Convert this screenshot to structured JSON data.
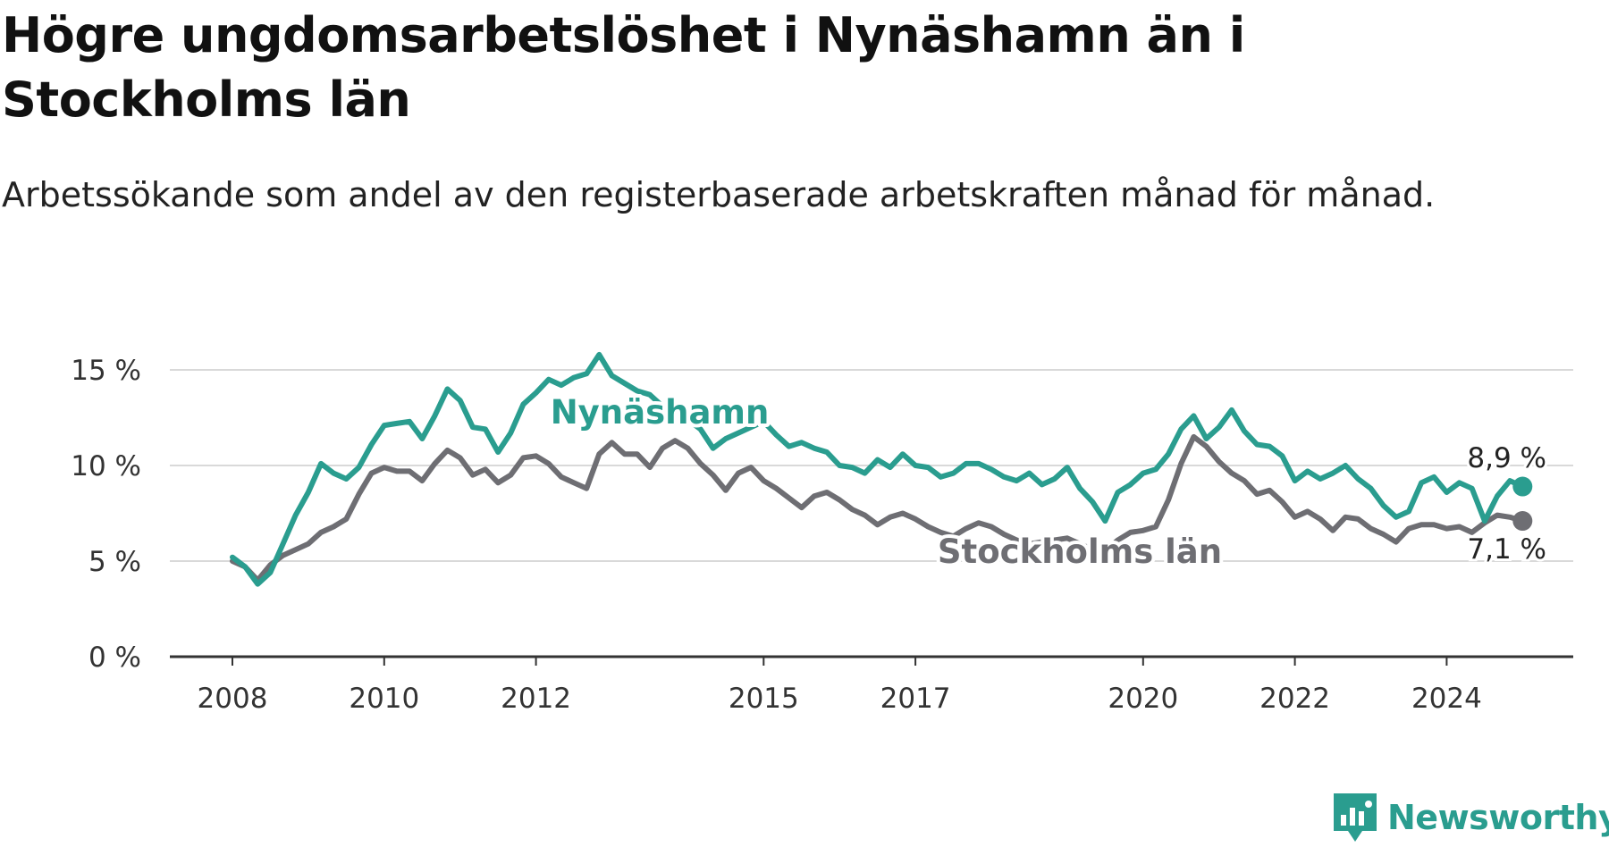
{
  "title": "Högre ungdomsarbetslöshet i Nynäshamn än i Stockholms län",
  "subtitle": "Arbetssökande som andel av den registerbaserade arbetskraften månad för månad.",
  "brand": {
    "name": "Newsworthy",
    "icon": "newsworthy-logo-icon",
    "color": "#2a9d8f"
  },
  "chart_data": {
    "type": "line",
    "title": "Högre ungdomsarbetslöshet i Nynäshamn än i Stockholms län",
    "subtitle": "Arbetssökande som andel av den registerbaserade arbetskraften månad för månad.",
    "xlabel": "",
    "ylabel": "",
    "x_ticks": [
      "2008",
      "2010",
      "2012",
      "2015",
      "2017",
      "2020",
      "2022",
      "2024"
    ],
    "y_ticks": [
      "0 %",
      "5 %",
      "10 %",
      "15 %"
    ],
    "ylim": [
      0,
      16
    ],
    "grid": "horizontal",
    "legend": "inline labels",
    "series": [
      {
        "name": "Nynäshamn",
        "color": "#2a9d8f",
        "end_label": "8,9 %",
        "points": [
          [
            "2008-01",
            5.2
          ],
          [
            "2008-03",
            4.7
          ],
          [
            "2008-05",
            3.8
          ],
          [
            "2008-07",
            4.4
          ],
          [
            "2008-09",
            5.9
          ],
          [
            "2008-11",
            7.4
          ],
          [
            "2009-01",
            8.6
          ],
          [
            "2009-03",
            10.1
          ],
          [
            "2009-05",
            9.6
          ],
          [
            "2009-07",
            9.3
          ],
          [
            "2009-09",
            9.9
          ],
          [
            "2009-11",
            11.1
          ],
          [
            "2010-01",
            12.1
          ],
          [
            "2010-03",
            12.2
          ],
          [
            "2010-05",
            12.3
          ],
          [
            "2010-07",
            11.4
          ],
          [
            "2010-09",
            12.6
          ],
          [
            "2010-11",
            14.0
          ],
          [
            "2011-01",
            13.4
          ],
          [
            "2011-03",
            12.0
          ],
          [
            "2011-05",
            11.9
          ],
          [
            "2011-07",
            10.7
          ],
          [
            "2011-09",
            11.7
          ],
          [
            "2011-11",
            13.2
          ],
          [
            "2012-01",
            13.8
          ],
          [
            "2012-03",
            14.5
          ],
          [
            "2012-05",
            14.2
          ],
          [
            "2012-07",
            14.6
          ],
          [
            "2012-09",
            14.8
          ],
          [
            "2012-11",
            15.8
          ],
          [
            "2013-01",
            14.7
          ],
          [
            "2013-03",
            14.3
          ],
          [
            "2013-05",
            13.9
          ],
          [
            "2013-07",
            13.7
          ],
          [
            "2013-09",
            13.1
          ],
          [
            "2013-11",
            12.8
          ],
          [
            "2014-01",
            12.4
          ],
          [
            "2014-03",
            11.9
          ],
          [
            "2014-05",
            10.9
          ],
          [
            "2014-07",
            11.4
          ],
          [
            "2014-09",
            11.7
          ],
          [
            "2014-11",
            12.0
          ],
          [
            "2015-01",
            12.3
          ],
          [
            "2015-03",
            11.6
          ],
          [
            "2015-05",
            11.0
          ],
          [
            "2015-07",
            11.2
          ],
          [
            "2015-09",
            10.9
          ],
          [
            "2015-11",
            10.7
          ],
          [
            "2016-01",
            10.0
          ],
          [
            "2016-03",
            9.9
          ],
          [
            "2016-05",
            9.6
          ],
          [
            "2016-07",
            10.3
          ],
          [
            "2016-09",
            9.9
          ],
          [
            "2016-11",
            10.6
          ],
          [
            "2017-01",
            10.0
          ],
          [
            "2017-03",
            9.9
          ],
          [
            "2017-05",
            9.4
          ],
          [
            "2017-07",
            9.6
          ],
          [
            "2017-09",
            10.1
          ],
          [
            "2017-11",
            10.1
          ],
          [
            "2018-01",
            9.8
          ],
          [
            "2018-03",
            9.4
          ],
          [
            "2018-05",
            9.2
          ],
          [
            "2018-07",
            9.6
          ],
          [
            "2018-09",
            9.0
          ],
          [
            "2018-11",
            9.3
          ],
          [
            "2019-01",
            9.9
          ],
          [
            "2019-03",
            8.8
          ],
          [
            "2019-05",
            8.1
          ],
          [
            "2019-07",
            7.1
          ],
          [
            "2019-09",
            8.6
          ],
          [
            "2019-11",
            9.0
          ],
          [
            "2020-01",
            9.6
          ],
          [
            "2020-03",
            9.8
          ],
          [
            "2020-05",
            10.6
          ],
          [
            "2020-07",
            11.9
          ],
          [
            "2020-09",
            12.6
          ],
          [
            "2020-11",
            11.4
          ],
          [
            "2021-01",
            12.0
          ],
          [
            "2021-03",
            12.9
          ],
          [
            "2021-05",
            11.8
          ],
          [
            "2021-07",
            11.1
          ],
          [
            "2021-09",
            11.0
          ],
          [
            "2021-11",
            10.5
          ],
          [
            "2022-01",
            9.2
          ],
          [
            "2022-03",
            9.7
          ],
          [
            "2022-05",
            9.3
          ],
          [
            "2022-07",
            9.6
          ],
          [
            "2022-09",
            10.0
          ],
          [
            "2022-11",
            9.3
          ],
          [
            "2023-01",
            8.8
          ],
          [
            "2023-03",
            7.9
          ],
          [
            "2023-05",
            7.3
          ],
          [
            "2023-07",
            7.6
          ],
          [
            "2023-09",
            9.1
          ],
          [
            "2023-11",
            9.4
          ],
          [
            "2024-01",
            8.6
          ],
          [
            "2024-03",
            9.1
          ],
          [
            "2024-05",
            8.8
          ],
          [
            "2024-07",
            7.1
          ],
          [
            "2024-09",
            8.4
          ],
          [
            "2024-11",
            9.2
          ],
          [
            "2025-01",
            8.9
          ]
        ]
      },
      {
        "name": "Stockholms län",
        "color": "#6e6e73",
        "end_label": "7,1 %",
        "points": [
          [
            "2008-01",
            5.0
          ],
          [
            "2008-03",
            4.7
          ],
          [
            "2008-05",
            4.0
          ],
          [
            "2008-07",
            4.8
          ],
          [
            "2008-09",
            5.3
          ],
          [
            "2008-11",
            5.6
          ],
          [
            "2009-01",
            5.9
          ],
          [
            "2009-03",
            6.5
          ],
          [
            "2009-05",
            6.8
          ],
          [
            "2009-07",
            7.2
          ],
          [
            "2009-09",
            8.5
          ],
          [
            "2009-11",
            9.6
          ],
          [
            "2010-01",
            9.9
          ],
          [
            "2010-03",
            9.7
          ],
          [
            "2010-05",
            9.7
          ],
          [
            "2010-07",
            9.2
          ],
          [
            "2010-09",
            10.1
          ],
          [
            "2010-11",
            10.8
          ],
          [
            "2011-01",
            10.4
          ],
          [
            "2011-03",
            9.5
          ],
          [
            "2011-05",
            9.8
          ],
          [
            "2011-07",
            9.1
          ],
          [
            "2011-09",
            9.5
          ],
          [
            "2011-11",
            10.4
          ],
          [
            "2012-01",
            10.5
          ],
          [
            "2012-03",
            10.1
          ],
          [
            "2012-05",
            9.4
          ],
          [
            "2012-07",
            9.1
          ],
          [
            "2012-09",
            8.8
          ],
          [
            "2012-11",
            10.6
          ],
          [
            "2013-01",
            11.2
          ],
          [
            "2013-03",
            10.6
          ],
          [
            "2013-05",
            10.6
          ],
          [
            "2013-07",
            9.9
          ],
          [
            "2013-09",
            10.9
          ],
          [
            "2013-11",
            11.3
          ],
          [
            "2014-01",
            10.9
          ],
          [
            "2014-03",
            10.1
          ],
          [
            "2014-05",
            9.5
          ],
          [
            "2014-07",
            8.7
          ],
          [
            "2014-09",
            9.6
          ],
          [
            "2014-11",
            9.9
          ],
          [
            "2015-01",
            9.2
          ],
          [
            "2015-03",
            8.8
          ],
          [
            "2015-05",
            8.3
          ],
          [
            "2015-07",
            7.8
          ],
          [
            "2015-09",
            8.4
          ],
          [
            "2015-11",
            8.6
          ],
          [
            "2016-01",
            8.2
          ],
          [
            "2016-03",
            7.7
          ],
          [
            "2016-05",
            7.4
          ],
          [
            "2016-07",
            6.9
          ],
          [
            "2016-09",
            7.3
          ],
          [
            "2016-11",
            7.5
          ],
          [
            "2017-01",
            7.2
          ],
          [
            "2017-03",
            6.8
          ],
          [
            "2017-05",
            6.5
          ],
          [
            "2017-07",
            6.3
          ],
          [
            "2017-09",
            6.7
          ],
          [
            "2017-11",
            7.0
          ],
          [
            "2018-01",
            6.8
          ],
          [
            "2018-03",
            6.4
          ],
          [
            "2018-05",
            6.1
          ],
          [
            "2018-07",
            5.9
          ],
          [
            "2018-09",
            6.0
          ],
          [
            "2018-11",
            6.1
          ],
          [
            "2019-01",
            6.2
          ],
          [
            "2019-03",
            5.9
          ],
          [
            "2019-05",
            5.6
          ],
          [
            "2019-07",
            5.5
          ],
          [
            "2019-09",
            6.1
          ],
          [
            "2019-11",
            6.5
          ],
          [
            "2020-01",
            6.6
          ],
          [
            "2020-03",
            6.8
          ],
          [
            "2020-05",
            8.2
          ],
          [
            "2020-07",
            10.1
          ],
          [
            "2020-09",
            11.5
          ],
          [
            "2020-11",
            11.0
          ],
          [
            "2021-01",
            10.2
          ],
          [
            "2021-03",
            9.6
          ],
          [
            "2021-05",
            9.2
          ],
          [
            "2021-07",
            8.5
          ],
          [
            "2021-09",
            8.7
          ],
          [
            "2021-11",
            8.1
          ],
          [
            "2022-01",
            7.3
          ],
          [
            "2022-03",
            7.6
          ],
          [
            "2022-05",
            7.2
          ],
          [
            "2022-07",
            6.6
          ],
          [
            "2022-09",
            7.3
          ],
          [
            "2022-11",
            7.2
          ],
          [
            "2023-01",
            6.7
          ],
          [
            "2023-03",
            6.4
          ],
          [
            "2023-05",
            6.0
          ],
          [
            "2023-07",
            6.7
          ],
          [
            "2023-09",
            6.9
          ],
          [
            "2023-11",
            6.9
          ],
          [
            "2024-01",
            6.7
          ],
          [
            "2024-03",
            6.8
          ],
          [
            "2024-05",
            6.5
          ],
          [
            "2024-07",
            7.0
          ],
          [
            "2024-09",
            7.4
          ],
          [
            "2024-11",
            7.3
          ],
          [
            "2025-01",
            7.1
          ]
        ]
      }
    ]
  }
}
